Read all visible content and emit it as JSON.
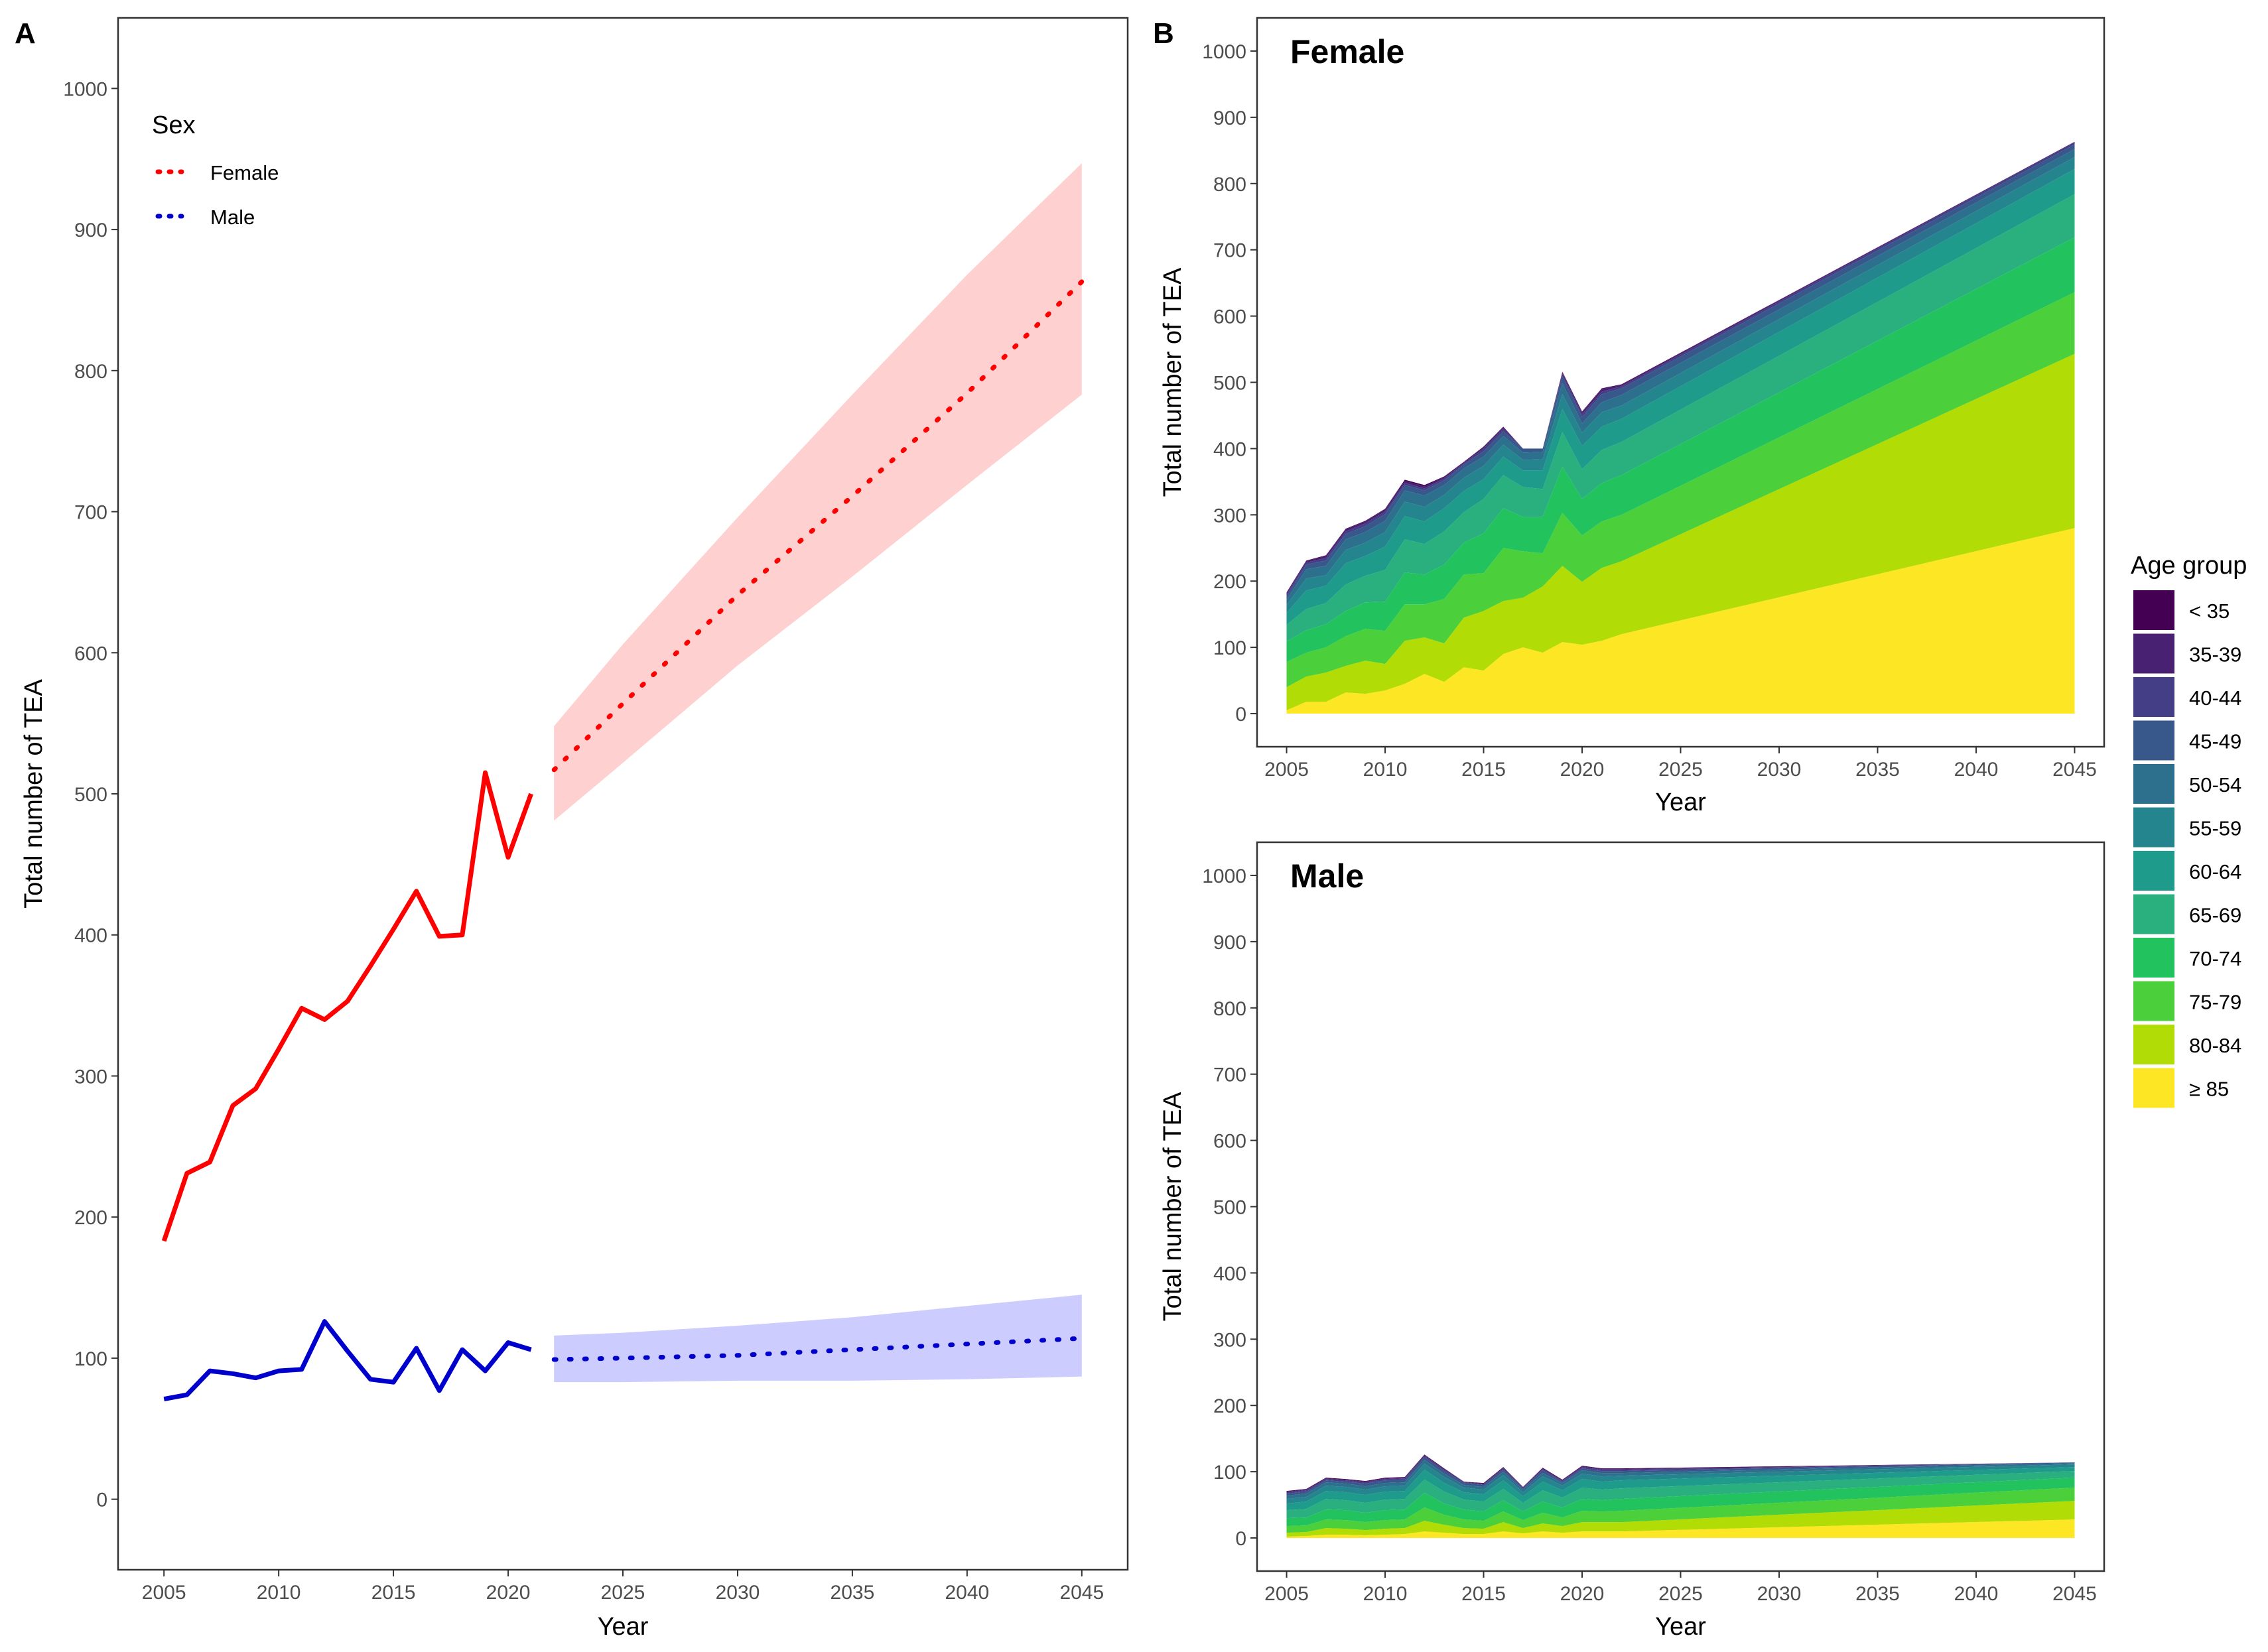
{
  "panel_labels": {
    "a": "A",
    "b": "B"
  },
  "chart_data": [
    {
      "id": "A",
      "type": "line",
      "title": "",
      "xlabel": "Year",
      "ylabel": "Total number of TEA",
      "xlim": [
        2003,
        2047
      ],
      "ylim": [
        -50,
        1050
      ],
      "xticks": [
        2005,
        2010,
        2015,
        2020,
        2025,
        2030,
        2035,
        2040,
        2045
      ],
      "yticks": [
        0,
        100,
        200,
        300,
        400,
        500,
        600,
        700,
        800,
        900,
        1000
      ],
      "grid": false,
      "legend": {
        "title": "Sex",
        "position": "top-left",
        "entries": [
          "Female",
          "Male"
        ]
      },
      "colors": {
        "Female": "#ff0000",
        "Male": "#0000cc",
        "Female_band": "#ffd0d0",
        "Male_band": "#ccccff"
      },
      "series": [
        {
          "name": "Female",
          "observed": {
            "x": [
              2005,
              2006,
              2007,
              2008,
              2009,
              2010,
              2011,
              2012,
              2013,
              2014,
              2015,
              2016,
              2017,
              2018,
              2019,
              2020,
              2021
            ],
            "y": [
              183,
              231,
              239,
              279,
              291,
              319,
              348,
              340,
              353,
              378,
              404,
              431,
              399,
              400,
              515,
              455,
              500
            ]
          },
          "forecast": {
            "x": [
              2022,
              2025,
              2030,
              2035,
              2040,
              2045
            ],
            "y": [
              517,
              564,
              641,
              711,
              784,
              863
            ],
            "lower": [
              481,
              522,
              591,
              654,
              719,
              783
            ],
            "upper": [
              548,
              606,
              696,
              783,
              868,
              947
            ]
          }
        },
        {
          "name": "Male",
          "observed": {
            "x": [
              2005,
              2006,
              2007,
              2008,
              2009,
              2010,
              2011,
              2012,
              2013,
              2014,
              2015,
              2016,
              2017,
              2018,
              2019,
              2020,
              2021
            ],
            "y": [
              71,
              74,
              91,
              89,
              86,
              91,
              92,
              126,
              105,
              85,
              83,
              107,
              77,
              106,
              91,
              111,
              106
            ]
          },
          "forecast": {
            "x": [
              2022,
              2025,
              2030,
              2035,
              2040,
              2045
            ],
            "y": [
              99,
              100,
              102,
              106,
              110,
              114
            ],
            "lower": [
              83,
              83,
              84,
              84,
              85,
              87
            ],
            "upper": [
              116,
              118,
              123,
              129,
              137,
              145
            ]
          }
        }
      ]
    },
    {
      "id": "B-Female",
      "type": "area",
      "title": "Female",
      "xlabel": "Year",
      "ylabel": "Total number of TEA",
      "xlim": [
        2003.5,
        2046.5
      ],
      "ylim": [
        -50,
        1050
      ],
      "xticks": [
        2005,
        2010,
        2015,
        2020,
        2025,
        2030,
        2035,
        2040,
        2045
      ],
      "yticks": [
        0,
        100,
        200,
        300,
        400,
        500,
        600,
        700,
        800,
        900,
        1000
      ],
      "grid": false,
      "stacked": true,
      "x": [
        2005,
        2006,
        2007,
        2008,
        2009,
        2010,
        2011,
        2012,
        2013,
        2014,
        2015,
        2016,
        2017,
        2018,
        2019,
        2020,
        2021,
        2022,
        2045
      ],
      "series": [
        {
          "name": "≥ 85",
          "values": [
            5,
            18,
            18,
            32,
            30,
            35,
            45,
            60,
            48,
            70,
            65,
            90,
            100,
            92,
            108,
            104,
            110,
            120,
            280
          ]
        },
        {
          "name": "80-84",
          "values": [
            35,
            38,
            44,
            40,
            50,
            40,
            65,
            55,
            58,
            75,
            90,
            80,
            75,
            100,
            115,
            95,
            110,
            110,
            263
          ]
        },
        {
          "name": "75-79",
          "values": [
            38,
            36,
            38,
            45,
            48,
            50,
            55,
            50,
            67,
            65,
            57,
            80,
            70,
            50,
            80,
            70,
            70,
            70,
            93
          ]
        },
        {
          "name": "70-74",
          "values": [
            31,
            34,
            35,
            38,
            40,
            44,
            48,
            45,
            52,
            48,
            60,
            60,
            52,
            55,
            70,
            55,
            58,
            60,
            83
          ]
        },
        {
          "name": "65-69",
          "values": [
            25,
            32,
            32,
            40,
            40,
            48,
            50,
            46,
            50,
            46,
            52,
            50,
            45,
            42,
            52,
            45,
            50,
            50,
            65
          ]
        },
        {
          "name": "60-64",
          "values": [
            18,
            28,
            26,
            32,
            30,
            35,
            35,
            34,
            35,
            32,
            30,
            28,
            25,
            28,
            35,
            35,
            35,
            35,
            38
          ]
        },
        {
          "name": "55-59",
          "values": [
            12,
            18,
            16,
            20,
            20,
            22,
            22,
            22,
            20,
            20,
            20,
            18,
            16,
            17,
            22,
            20,
            22,
            20,
            18
          ]
        },
        {
          "name": "50-54",
          "values": [
            8,
            14,
            14,
            16,
            16,
            17,
            17,
            17,
            15,
            14,
            14,
            13,
            11,
            11,
            17,
            14,
            15,
            16,
            12
          ]
        },
        {
          "name": "45-49",
          "values": [
            5,
            7,
            8,
            8,
            9,
            10,
            8,
            8,
            7,
            6,
            8,
            7,
            6,
            5,
            10,
            10,
            12,
            10,
            7
          ]
        },
        {
          "name": "40-44",
          "values": [
            3,
            3,
            4,
            4,
            4,
            4,
            3,
            3,
            3,
            2,
            4,
            4,
            0,
            0,
            4,
            4,
            4,
            3,
            3
          ]
        },
        {
          "name": "35-39",
          "values": [
            2,
            2,
            3,
            3,
            3,
            3,
            3,
            3,
            2,
            1,
            2,
            2,
            0,
            0,
            2,
            3,
            4,
            2,
            1
          ]
        },
        {
          "name": "< 35",
          "values": [
            1,
            1,
            1,
            1,
            1,
            1,
            2,
            2,
            1,
            1,
            1,
            1,
            0,
            0,
            1,
            1,
            1,
            1,
            0
          ]
        }
      ]
    },
    {
      "id": "B-Male",
      "type": "area",
      "title": "Male",
      "xlabel": "Year",
      "ylabel": "Total number of TEA",
      "xlim": [
        2003.5,
        2046.5
      ],
      "ylim": [
        -50,
        1050
      ],
      "xticks": [
        2005,
        2010,
        2015,
        2020,
        2025,
        2030,
        2035,
        2040,
        2045
      ],
      "yticks": [
        0,
        100,
        200,
        300,
        400,
        500,
        600,
        700,
        800,
        900,
        1000
      ],
      "grid": false,
      "stacked": true,
      "x": [
        2005,
        2006,
        2007,
        2008,
        2009,
        2010,
        2011,
        2012,
        2013,
        2014,
        2015,
        2016,
        2017,
        2018,
        2019,
        2020,
        2021,
        2022,
        2045
      ],
      "series": [
        {
          "name": "≥ 85",
          "values": [
            2,
            3,
            5,
            5,
            4,
            5,
            6,
            10,
            8,
            6,
            6,
            10,
            7,
            10,
            8,
            10,
            10,
            10,
            28
          ]
        },
        {
          "name": "80-84",
          "values": [
            6,
            6,
            10,
            9,
            8,
            9,
            9,
            16,
            12,
            9,
            8,
            14,
            8,
            12,
            10,
            14,
            14,
            14,
            28
          ]
        },
        {
          "name": "75-79",
          "values": [
            10,
            10,
            13,
            13,
            12,
            13,
            13,
            20,
            15,
            13,
            12,
            16,
            12,
            16,
            13,
            17,
            16,
            17,
            20
          ]
        },
        {
          "name": "70-74",
          "values": [
            12,
            12,
            15,
            15,
            14,
            15,
            15,
            22,
            17,
            15,
            14,
            17,
            13,
            17,
            15,
            18,
            17,
            18,
            15
          ]
        },
        {
          "name": "65-69",
          "values": [
            12,
            13,
            16,
            15,
            15,
            16,
            16,
            20,
            18,
            15,
            15,
            17,
            13,
            17,
            15,
            17,
            16,
            16,
            10
          ]
        },
        {
          "name": "60-64",
          "values": [
            10,
            11,
            12,
            12,
            12,
            12,
            12,
            15,
            13,
            11,
            11,
            13,
            10,
            13,
            11,
            13,
            12,
            12,
            6
          ]
        },
        {
          "name": "55-59",
          "values": [
            7,
            7,
            8,
            8,
            8,
            8,
            8,
            9,
            9,
            7,
            7,
            8,
            6,
            8,
            7,
            8,
            8,
            7,
            4
          ]
        },
        {
          "name": "50-54",
          "values": [
            5,
            5,
            5,
            5,
            5,
            5,
            5,
            6,
            5,
            4,
            4,
            5,
            4,
            5,
            4,
            5,
            5,
            4,
            2
          ]
        },
        {
          "name": "45-49",
          "values": [
            3,
            3,
            3,
            3,
            4,
            4,
            4,
            4,
            4,
            3,
            3,
            3,
            2,
            4,
            2,
            3,
            3,
            3,
            1
          ]
        },
        {
          "name": "40-44",
          "values": [
            2,
            2,
            2,
            2,
            2,
            2,
            2,
            2,
            2,
            1,
            1,
            2,
            1,
            2,
            1,
            2,
            2,
            2,
            0
          ]
        },
        {
          "name": "35-39",
          "values": [
            1,
            1,
            1,
            1,
            1,
            1,
            1,
            1,
            1,
            1,
            1,
            1,
            0,
            1,
            1,
            1,
            1,
            1,
            0
          ]
        },
        {
          "name": "< 35",
          "values": [
            1,
            1,
            1,
            1,
            1,
            1,
            1,
            1,
            1,
            0,
            1,
            1,
            1,
            1,
            1,
            1,
            1,
            1,
            0
          ]
        }
      ]
    }
  ],
  "age_legend": {
    "title": "Age group",
    "items": [
      {
        "label": "< 35",
        "color": "#440154"
      },
      {
        "label": "35-39",
        "color": "#482173"
      },
      {
        "label": "40-44",
        "color": "#433e85"
      },
      {
        "label": "45-49",
        "color": "#38588c"
      },
      {
        "label": "50-54",
        "color": "#2d708e"
      },
      {
        "label": "55-59",
        "color": "#25858e"
      },
      {
        "label": "60-64",
        "color": "#1e9b8a"
      },
      {
        "label": "65-69",
        "color": "#2ab07f"
      },
      {
        "label": "70-74",
        "color": "#22c35e"
      },
      {
        "label": "75-79",
        "color": "#4bcf3a"
      },
      {
        "label": "80-84",
        "color": "#b2dc06"
      },
      {
        "label": "≥ 85",
        "color": "#fde725"
      }
    ]
  }
}
